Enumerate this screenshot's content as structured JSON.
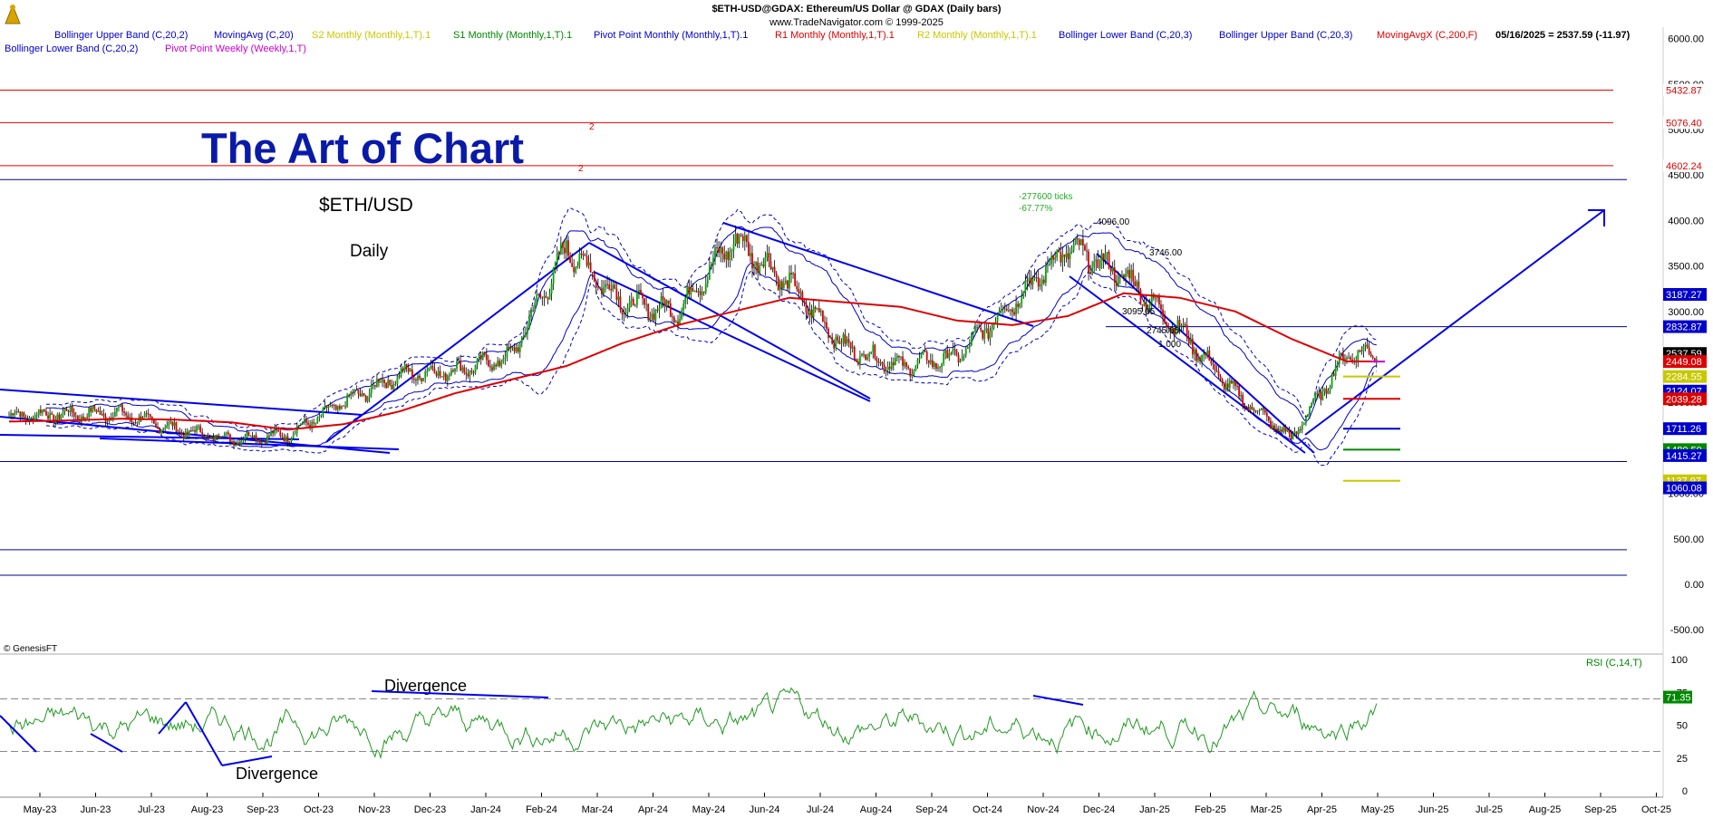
{
  "header": {
    "title_line1": "$ETH-USD@GDAX:  Ethereum/US Dollar @ GDAX  (Daily bars)",
    "title_line2": "www.TradeNavigator.com © 1999-2025",
    "legend_row1": [
      {
        "text": "Bollinger Upper Band (C,20,2)",
        "color": "#0000cc"
      },
      {
        "text": "MovingAvg (C,20)",
        "color": "#0000cc"
      },
      {
        "text": "S2 Monthly (Monthly,1,T).1",
        "color": "#c8c800"
      },
      {
        "text": "S1 Monthly (Monthly,1,T).1",
        "color": "#008800"
      },
      {
        "text": "Pivot Point Monthly (Monthly,1,T).1",
        "color": "#0000cc"
      },
      {
        "text": "R1 Monthly (Monthly,1,T).1",
        "color": "#dd0000"
      },
      {
        "text": "R2 Monthly (Monthly,1,T).1",
        "color": "#c8c800"
      },
      {
        "text": "Bollinger Lower Band (C,20,3)",
        "color": "#0000cc"
      },
      {
        "text": "Bollinger Upper Band (C,20,3)",
        "color": "#0000cc"
      },
      {
        "text": "MovingAvgX (C,200,F)",
        "color": "#dd0000"
      },
      {
        "text": "05/16/2025 = 2537.59 (-11.97)",
        "color": "#000000"
      }
    ],
    "legend_row2": [
      {
        "text": "Bollinger Lower Band (C,20,2)",
        "color": "#0000cc"
      },
      {
        "text": "Pivot Point Weekly (Weekly,1,T)",
        "color": "#cc00cc"
      }
    ]
  },
  "overlay": {
    "headline": "The Art of Chart",
    "symbol": "$ETH/USD",
    "timeframe": "Daily",
    "copyright": "© GenesisFT"
  },
  "annotations": {
    "ticks_line1": "-277600 ticks",
    "ticks_line2": "-67.77%",
    "peak_label": "4096.00",
    "swing_label": "3746.00",
    "low_label": "3095.65",
    "fib_label1": "2745.65",
    "fib_label2": "1.000",
    "wave_mark_a": "2",
    "wave_mark_b": "2",
    "divergence_top": "Divergence",
    "divergence_bottom": "Divergence",
    "rsi_title": "RSI (C,14,T)"
  },
  "colors": {
    "price_up": "#00aa00",
    "price_down": "#dd0000",
    "ma200": "#dd0000",
    "bollinger": "#0000cc",
    "trendline": "#0000ee",
    "rsi_line": "#229922",
    "resistance": "#ee0000",
    "channel_line": "#000099"
  },
  "price_axis_labels": [
    "6000.00",
    "5500.00",
    "5000.00",
    "4500.00",
    "4000.00",
    "3500.00",
    "3000.00",
    "2500.00",
    "2000.00",
    "1500.00",
    "1000.00",
    "500.00",
    "0.00",
    "-500.00"
  ],
  "rsi_axis_labels": [
    "100",
    "75",
    "50",
    "25",
    "0"
  ],
  "x_axis_labels": [
    "May-23",
    "Jun-23",
    "Jul-23",
    "Aug-23",
    "Sep-23",
    "Oct-23",
    "Nov-23",
    "Dec-23",
    "Jan-24",
    "Feb-24",
    "Mar-24",
    "Apr-24",
    "May-24",
    "Jun-24",
    "Jul-24",
    "Aug-24",
    "Sep-24",
    "Oct-24",
    "Nov-24",
    "Dec-24",
    "Jan-25",
    "Feb-25",
    "Mar-25",
    "Apr-25",
    "May-25",
    "Jun-25",
    "Jul-25",
    "Aug-25",
    "Sep-25",
    "Oct-25"
  ],
  "level_tags": [
    {
      "text": "5432.87",
      "value": 5432.87,
      "bg": "#ffffff",
      "fg": "#dd0000"
    },
    {
      "text": "5076.40",
      "value": 5076.4,
      "bg": "#ffffff",
      "fg": "#dd0000"
    },
    {
      "text": "4602.24",
      "value": 4602.24,
      "bg": "#ffffff",
      "fg": "#dd0000"
    },
    {
      "text": "3187.27",
      "value": 3187.27,
      "bg": "#0000cc",
      "fg": "#ffffff"
    },
    {
      "text": "2832.87",
      "value": 2832.87,
      "bg": "#0000cc",
      "fg": "#ffffff"
    },
    {
      "text": "2537.59",
      "value": 2537.59,
      "bg": "#000000",
      "fg": "#ffffff"
    },
    {
      "text": "2449.08",
      "value": 2449.08,
      "bg": "#dd0000",
      "fg": "#ffffff"
    },
    {
      "text": "2284.55",
      "value": 2284.55,
      "bg": "#c8c800",
      "fg": "#ffffff"
    },
    {
      "text": "2124.07",
      "value": 2124.07,
      "bg": "#0000cc",
      "fg": "#ffffff"
    },
    {
      "text": "2039.28",
      "value": 2039.28,
      "bg": "#dd0000",
      "fg": "#ffffff"
    },
    {
      "text": "1711.26",
      "value": 1711.26,
      "bg": "#0000cc",
      "fg": "#ffffff"
    },
    {
      "text": "1480.50",
      "value": 1480.5,
      "bg": "#008800",
      "fg": "#ffffff"
    },
    {
      "text": "1415.27",
      "value": 1415.27,
      "bg": "#0000cc",
      "fg": "#ffffff"
    },
    {
      "text": "1137.97",
      "value": 1137.97,
      "bg": "#c8c800",
      "fg": "#ffffff"
    },
    {
      "text": "1060.08",
      "value": 1060.08,
      "bg": "#0000cc",
      "fg": "#ffffff"
    }
  ],
  "rsi_value_tag": {
    "text": "71.35",
    "value": 71.35
  },
  "chart_data": {
    "type": "line",
    "x": [
      "May-23",
      "Jun-23",
      "Jul-23",
      "Aug-23",
      "Sep-23",
      "Oct-23",
      "Nov-23",
      "Dec-23",
      "Jan-24",
      "Feb-24",
      "Mar-24",
      "Apr-24",
      "May-24",
      "Jun-24",
      "Jul-24",
      "Aug-24",
      "Sep-24",
      "Oct-24",
      "Nov-24",
      "Dec-24",
      "Jan-25",
      "Feb-25",
      "Mar-25",
      "Apr-25",
      "May-25"
    ],
    "series": [
      {
        "values": [
          1850,
          1870,
          1880,
          1700,
          1600,
          1640,
          2000,
          2300,
          2350,
          2500,
          3700,
          3100,
          3000,
          3800,
          3300,
          2600,
          2400,
          2500,
          3100,
          3700,
          3400,
          2800,
          2100,
          1600,
          2537.59
        ]
      },
      {
        "values": [
          1790,
          1800,
          1820,
          1810,
          1780,
          1700,
          1760,
          1900,
          2100,
          2250,
          2400,
          2650,
          2850,
          3000,
          3150,
          3100,
          3050,
          2900,
          2850,
          2950,
          3200,
          3150,
          3000,
          2700,
          2450
        ]
      },
      {
        "values": [
          null,
          null,
          null,
          null,
          null,
          null,
          null,
          null,
          null,
          null,
          null,
          null,
          null,
          null,
          null,
          null,
          null,
          null,
          null,
          null,
          null,
          null,
          null,
          null,
          71.35
        ]
      }
    ],
    "ylim": [
      -700,
      6200
    ],
    "rsi_ylim": [
      0,
      100
    ],
    "key_levels": [
      5432.87,
      5076.4,
      4602.24
    ],
    "grid": false,
    "legend": "top"
  }
}
